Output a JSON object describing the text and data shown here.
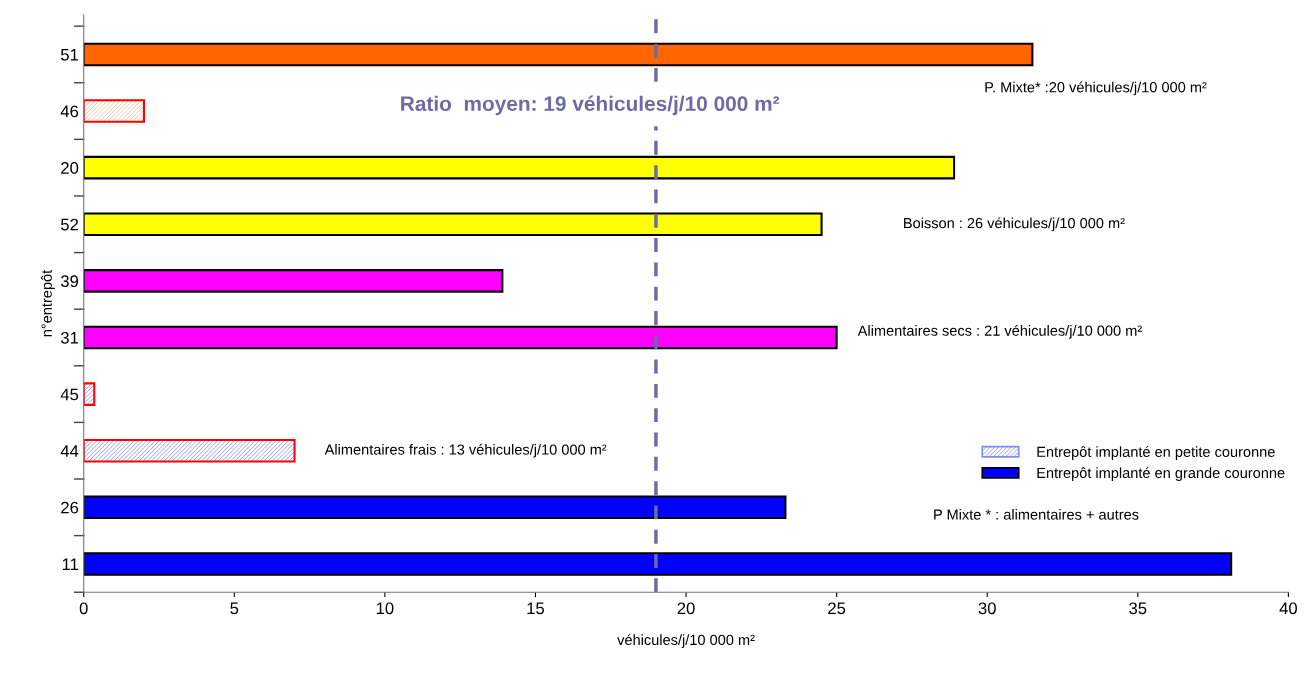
{
  "chart_data": {
    "type": "bar",
    "orientation": "horizontal",
    "xlabel": "véhicules/j/10 000 m²",
    "ylabel": "n°entrepôt",
    "categories": [
      "51",
      "46",
      "20",
      "52",
      "39",
      "31",
      "45",
      "44",
      "26",
      "11"
    ],
    "series": [
      {
        "name": "Entrepôt implanté en petite couronne",
        "color": "#7f8cff",
        "values": [
          null,
          2.0,
          null,
          null,
          null,
          null,
          0.35,
          7.0,
          null,
          null
        ],
        "colors": [
          "#7f8cff",
          "#ffb89a",
          "#7f8cff",
          "#7f8cff",
          "#7f8cff",
          "#7f8cff",
          "#7f8cff",
          "#7f8cff",
          "#7f8cff",
          "#7f8cff"
        ]
      },
      {
        "name": "Entrepôt implanté en grande couronne",
        "color": "#0000ff",
        "values": [
          31.5,
          null,
          28.9,
          24.5,
          13.9,
          25.0,
          null,
          null,
          23.3,
          38.1
        ],
        "colors": [
          "#ff6600",
          "#0000ff",
          "#ffff00",
          "#ffff00",
          "#ff00ff",
          "#ff00ff",
          "#0000ff",
          "#0000ff",
          "#0000ff",
          "#0000ff"
        ]
      }
    ],
    "xlim": [
      0,
      40
    ],
    "xticks": [
      0,
      5,
      10,
      15,
      20,
      25,
      30,
      35,
      40
    ],
    "ref_lines": [
      {
        "axis": "x",
        "value": 19,
        "label": "Ratio  moyen: 19 véhicules/j/10 000 m²",
        "color": "#6b6ba6",
        "line_style": "dashed"
      }
    ],
    "annotations": [
      "P. Mixte* :20 véhicules/j/10 000 m²",
      "Boisson : 26 véhicules/j/10 000 m²",
      "Alimentaires secs : 21 véhicules/j/10 000 m²",
      "Alimentaires frais : 13 véhicules/j/10 000 m²",
      "P Mixte * : alimentaires + autres"
    ],
    "legend": "right",
    "grid": false
  }
}
